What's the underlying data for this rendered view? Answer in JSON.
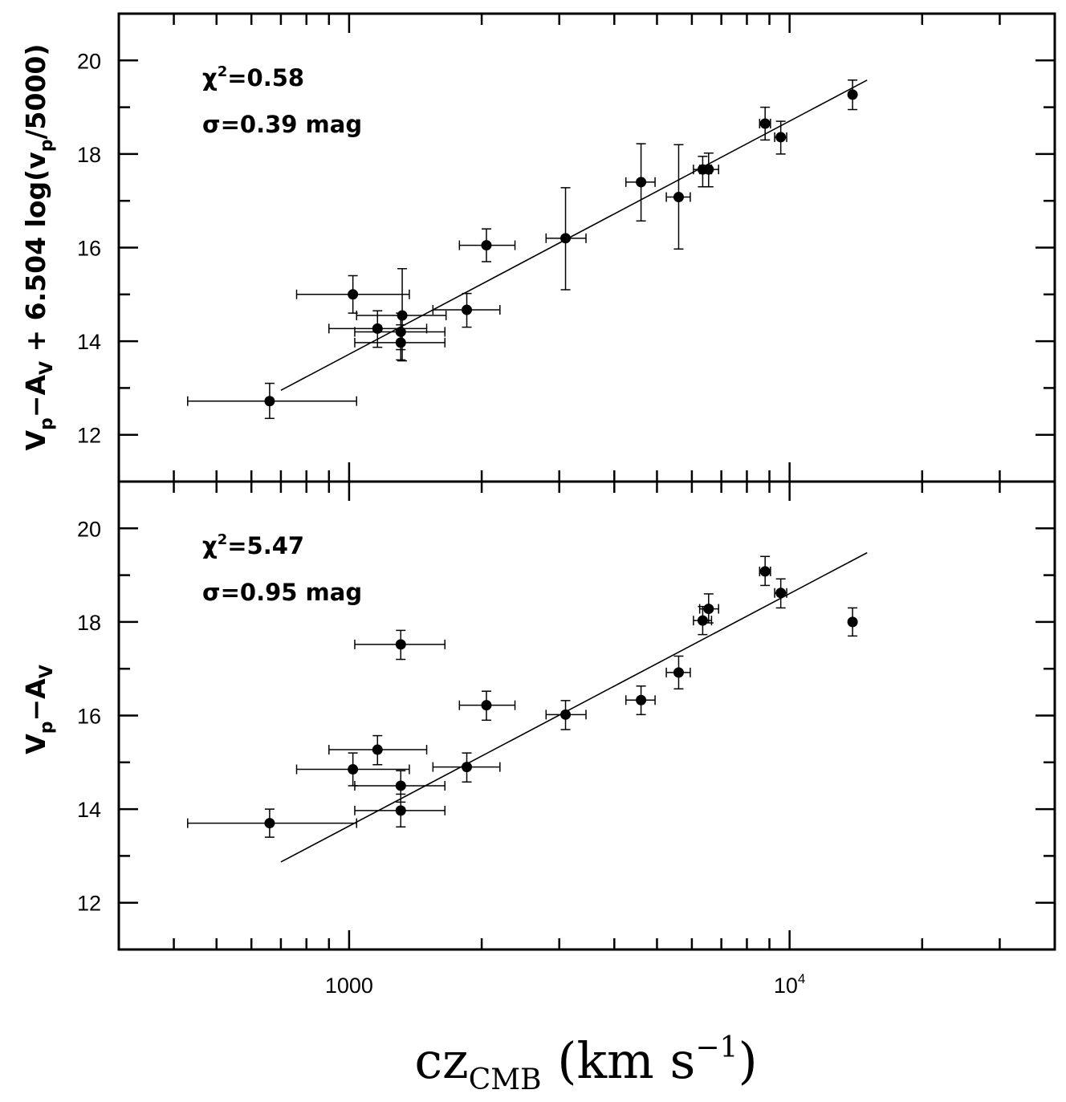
{
  "chart_data": {
    "type": "scatter",
    "shared_x": {
      "scale": "log",
      "xlim": [
        300,
        40000
      ],
      "major_ticks": [
        1000,
        10000
      ],
      "minor_ticks": [
        400,
        500,
        600,
        700,
        800,
        900,
        2000,
        3000,
        4000,
        5000,
        6000,
        7000,
        8000,
        9000,
        20000,
        30000
      ],
      "tick_labels": [
        {
          "value": 1000,
          "base": "1000",
          "exp": ""
        },
        {
          "value": 10000,
          "base": "10",
          "exp": "4"
        }
      ],
      "label": {
        "main": "cz",
        "sub": "CMB",
        "units_open": " (km s",
        "sup": "−1",
        "units_close": ")"
      }
    },
    "panels": [
      {
        "ylim": [
          11,
          21
        ],
        "yticks": [
          12,
          14,
          16,
          18,
          20
        ],
        "ylabel": {
          "v": "V",
          "p": "p",
          "minus": "−A",
          "vsub": "V",
          "rest": " + 6.504 log(v",
          "close": "/5000)"
        },
        "stats": {
          "chi_label": "χ",
          "chi_sup": "2",
          "chi": "=0.58",
          "sigma": "σ=0.39 mag"
        },
        "fit": {
          "x": [
            700,
            15000
          ],
          "y": [
            12.95,
            19.58
          ]
        },
        "points": [
          {
            "x": 660,
            "y": 12.72,
            "xlo": 430,
            "xhi": 1040,
            "ylo": 12.35,
            "yhi": 13.1
          },
          {
            "x": 1020,
            "y": 15.0,
            "xlo": 760,
            "xhi": 1370,
            "ylo": 14.6,
            "yhi": 15.4
          },
          {
            "x": 1160,
            "y": 14.27,
            "xlo": 900,
            "xhi": 1500,
            "ylo": 13.87,
            "yhi": 14.65
          },
          {
            "x": 1310,
            "y": 14.2,
            "xlo": 1030,
            "xhi": 1650,
            "ylo": 13.82,
            "yhi": 14.6
          },
          {
            "x": 1310,
            "y": 13.97,
            "xlo": 1030,
            "xhi": 1650,
            "ylo": 13.6,
            "yhi": 14.35
          },
          {
            "x": 1320,
            "y": 14.55,
            "xlo": 1040,
            "xhi": 1660,
            "ylo": 13.58,
            "yhi": 15.55
          },
          {
            "x": 1850,
            "y": 14.67,
            "xlo": 1550,
            "xhi": 2200,
            "ylo": 14.3,
            "yhi": 15.02
          },
          {
            "x": 2050,
            "y": 16.05,
            "xlo": 1780,
            "xhi": 2380,
            "ylo": 15.7,
            "yhi": 16.4
          },
          {
            "x": 3100,
            "y": 16.2,
            "xlo": 2800,
            "xhi": 3450,
            "ylo": 15.1,
            "yhi": 17.28
          },
          {
            "x": 4600,
            "y": 17.4,
            "xlo": 4250,
            "xhi": 4950,
            "ylo": 16.57,
            "yhi": 18.22
          },
          {
            "x": 5600,
            "y": 17.08,
            "xlo": 5250,
            "xhi": 5950,
            "ylo": 15.97,
            "yhi": 18.2
          },
          {
            "x": 6350,
            "y": 17.67,
            "xlo": 6050,
            "xhi": 6650,
            "ylo": 17.3,
            "yhi": 17.95
          },
          {
            "x": 6550,
            "y": 17.67,
            "xlo": 6250,
            "xhi": 6900,
            "ylo": 17.3,
            "yhi": 18.02
          },
          {
            "x": 8800,
            "y": 18.65,
            "xlo": 8550,
            "xhi": 9050,
            "ylo": 18.3,
            "yhi": 19.0
          },
          {
            "x": 9550,
            "y": 18.36,
            "xlo": 9250,
            "xhi": 9850,
            "ylo": 18.0,
            "yhi": 18.7
          },
          {
            "x": 13900,
            "y": 19.27,
            "xlo": 13800,
            "xhi": 14000,
            "ylo": 18.95,
            "yhi": 19.58
          }
        ]
      },
      {
        "ylim": [
          11,
          21
        ],
        "yticks": [
          12,
          14,
          16,
          18,
          20
        ],
        "ylabel": {
          "v": "V",
          "p": "p",
          "minus": "−A",
          "vsub": "V",
          "rest": "",
          "close": ""
        },
        "stats": {
          "chi_label": "χ",
          "chi_sup": "2",
          "chi": "=5.47",
          "sigma": "σ=0.95 mag"
        },
        "fit": {
          "x": [
            700,
            15000
          ],
          "y": [
            12.87,
            19.48
          ]
        },
        "points": [
          {
            "x": 660,
            "y": 13.7,
            "xlo": 430,
            "xhi": 1040,
            "ylo": 13.4,
            "yhi": 14.0
          },
          {
            "x": 1020,
            "y": 14.85,
            "xlo": 760,
            "xhi": 1370,
            "ylo": 14.5,
            "yhi": 15.2
          },
          {
            "x": 1160,
            "y": 15.27,
            "xlo": 900,
            "xhi": 1500,
            "ylo": 14.95,
            "yhi": 15.57
          },
          {
            "x": 1310,
            "y": 14.5,
            "xlo": 1030,
            "xhi": 1650,
            "ylo": 14.15,
            "yhi": 14.82
          },
          {
            "x": 1310,
            "y": 13.97,
            "xlo": 1030,
            "xhi": 1650,
            "ylo": 13.62,
            "yhi": 14.32
          },
          {
            "x": 1310,
            "y": 17.52,
            "xlo": 1030,
            "xhi": 1650,
            "ylo": 17.2,
            "yhi": 17.82
          },
          {
            "x": 1850,
            "y": 14.9,
            "xlo": 1550,
            "xhi": 2200,
            "ylo": 14.58,
            "yhi": 15.2
          },
          {
            "x": 2050,
            "y": 16.22,
            "xlo": 1780,
            "xhi": 2380,
            "ylo": 15.9,
            "yhi": 16.52
          },
          {
            "x": 3100,
            "y": 16.02,
            "xlo": 2800,
            "xhi": 3450,
            "ylo": 15.7,
            "yhi": 16.32
          },
          {
            "x": 4600,
            "y": 16.33,
            "xlo": 4250,
            "xhi": 4950,
            "ylo": 16.02,
            "yhi": 16.63
          },
          {
            "x": 5600,
            "y": 16.92,
            "xlo": 5250,
            "xhi": 5950,
            "ylo": 16.57,
            "yhi": 17.27
          },
          {
            "x": 6350,
            "y": 18.03,
            "xlo": 6050,
            "xhi": 6650,
            "ylo": 17.73,
            "yhi": 18.33
          },
          {
            "x": 6550,
            "y": 18.28,
            "xlo": 6250,
            "xhi": 6900,
            "ylo": 17.98,
            "yhi": 18.6
          },
          {
            "x": 8800,
            "y": 19.08,
            "xlo": 8550,
            "xhi": 9050,
            "ylo": 18.78,
            "yhi": 19.4
          },
          {
            "x": 9550,
            "y": 18.62,
            "xlo": 9250,
            "xhi": 9850,
            "ylo": 18.3,
            "yhi": 18.92
          },
          {
            "x": 13900,
            "y": 18.0,
            "xlo": 13800,
            "xhi": 14000,
            "ylo": 17.7,
            "yhi": 18.3
          }
        ]
      }
    ]
  }
}
